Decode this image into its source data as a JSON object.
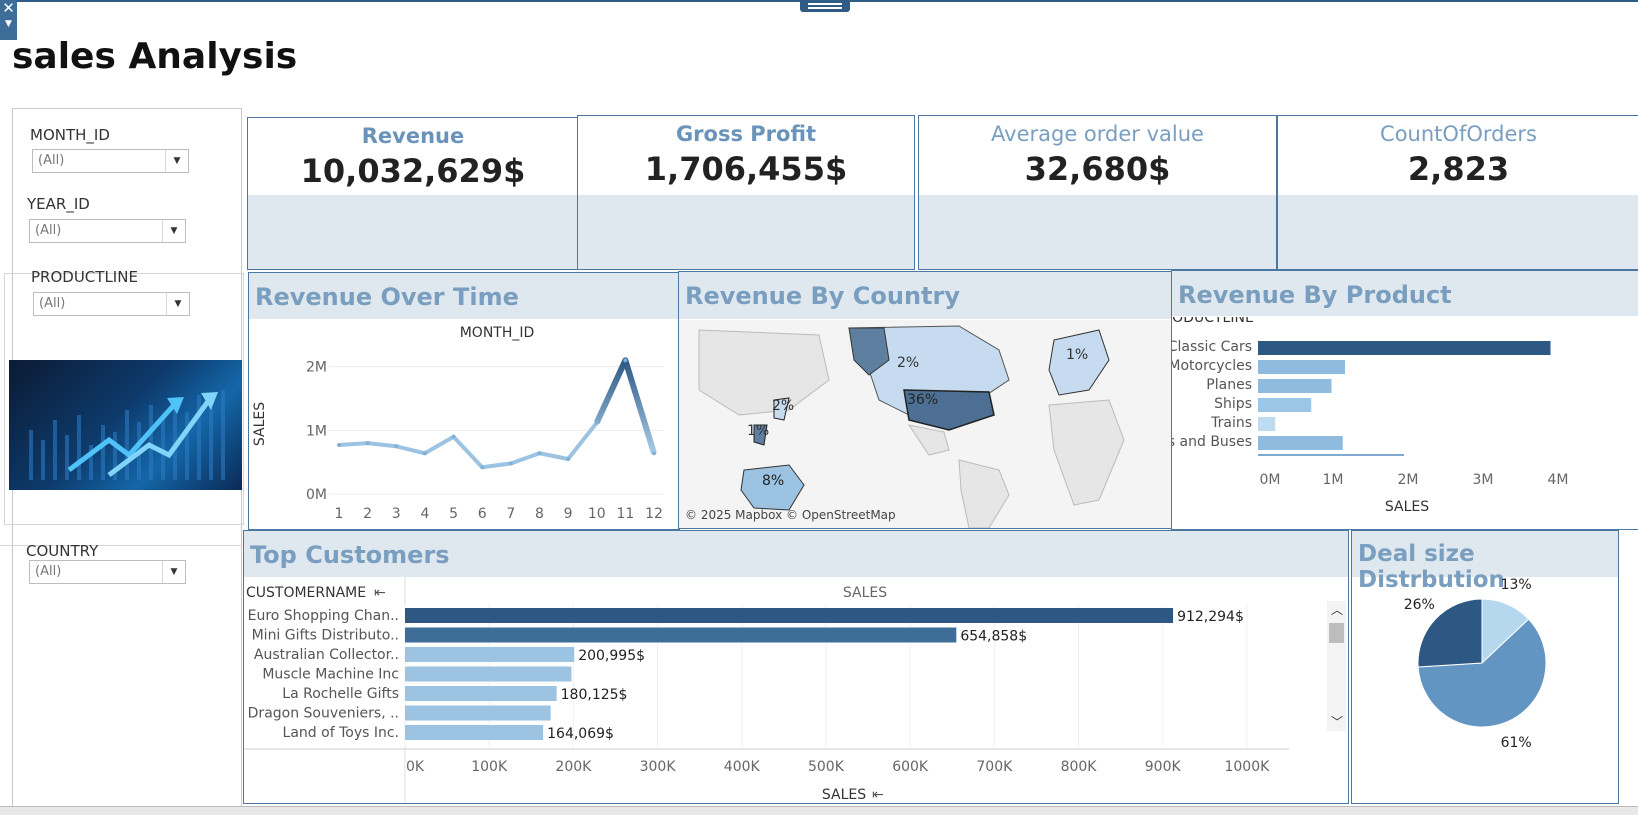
{
  "dashboard": {
    "title": "sales Analysis"
  },
  "filters": [
    {
      "label": "MONTH_ID",
      "value": "(All)"
    },
    {
      "label": "YEAR_ID",
      "value": "(All)"
    },
    {
      "label": "PRODUCTLINE",
      "value": "(All)"
    },
    {
      "label": "COUNTRY",
      "value": "(All)"
    }
  ],
  "kpis": [
    {
      "label": "Revenue",
      "value": "10,032,629$"
    },
    {
      "label": "Gross Profit",
      "value": "1,706,455$"
    },
    {
      "label": "Average order value",
      "value": "32,680$"
    },
    {
      "label": "CountOfOrders",
      "value": "2,823"
    }
  ],
  "sections": {
    "revenue_over_time": "Revenue Over Time",
    "revenue_by_country": "Revenue By Country",
    "revenue_by_product": "Revenue By Product",
    "top_customers": "Top Customers",
    "deal_size": "Deal size Distrbution"
  },
  "map": {
    "attribution": "© 2025 Mapbox © OpenStreetMap",
    "labels": [
      "2%",
      "36%",
      "2%",
      "1%",
      "8%",
      "1%"
    ]
  },
  "icons": {
    "close": "close-icon",
    "menu": "chevron-down-icon",
    "sort": "sort-icon",
    "scroll_up": "chevron-up-icon",
    "scroll_down": "chevron-down-icon"
  },
  "colors": {
    "accent_dark": "#2e5884",
    "accent_mid": "#5f92c0",
    "accent_light": "#9cc3e2",
    "header_bg": "#dfe8ee",
    "header_text": "#7a9ec0"
  },
  "chart_data": [
    {
      "type": "line",
      "title": "",
      "xlabel": "MONTH_ID",
      "ylabel": "SALES",
      "x": [
        1,
        2,
        3,
        4,
        5,
        6,
        7,
        8,
        9,
        10,
        11,
        12
      ],
      "values": [
        770000,
        800000,
        750000,
        640000,
        900000,
        420000,
        480000,
        640000,
        550000,
        1120000,
        2100000,
        640000
      ],
      "yticks": [
        "0M",
        "1M",
        "2M"
      ],
      "ylim": [
        0,
        2200000
      ]
    },
    {
      "type": "bar",
      "orientation": "horizontal",
      "xlabel": "SALES",
      "category_header": "PRODUCTLINE",
      "categories": [
        "Classic Cars",
        "Motorcycles",
        "Planes",
        "Ships",
        "Trains",
        "Trucks and Buses"
      ],
      "values": [
        3900000,
        1160000,
        980000,
        710000,
        230000,
        1130000
      ],
      "xticks": [
        "0M",
        "1M",
        "2M",
        "3M",
        "4M"
      ],
      "xlim": [
        0,
        4000000
      ]
    },
    {
      "type": "bar",
      "orientation": "horizontal",
      "xlabel": "SALES",
      "column_header": "SALES",
      "category_header": "CUSTOMERNAME",
      "categories": [
        "Euro Shopping Chan..",
        "Mini Gifts Distributo..",
        "Australian Collector..",
        "Muscle Machine Inc",
        "La Rochelle Gifts",
        "Dragon Souveniers, ..",
        "Land of Toys Inc."
      ],
      "values": [
        912294,
        654858,
        200995,
        197737,
        180125,
        172990,
        164069
      ],
      "value_labels": [
        "912,294$",
        "654,858$",
        "200,995$",
        "",
        "180,125$",
        "",
        "164,069$"
      ],
      "xticks": [
        "0K",
        "100K",
        "200K",
        "300K",
        "400K",
        "500K",
        "600K",
        "700K",
        "800K",
        "900K",
        "1000K"
      ],
      "xlim": [
        0,
        1050000
      ]
    },
    {
      "type": "pie",
      "labels": [
        "13%",
        "61%",
        "26%"
      ],
      "values": [
        13,
        61,
        26
      ]
    }
  ]
}
